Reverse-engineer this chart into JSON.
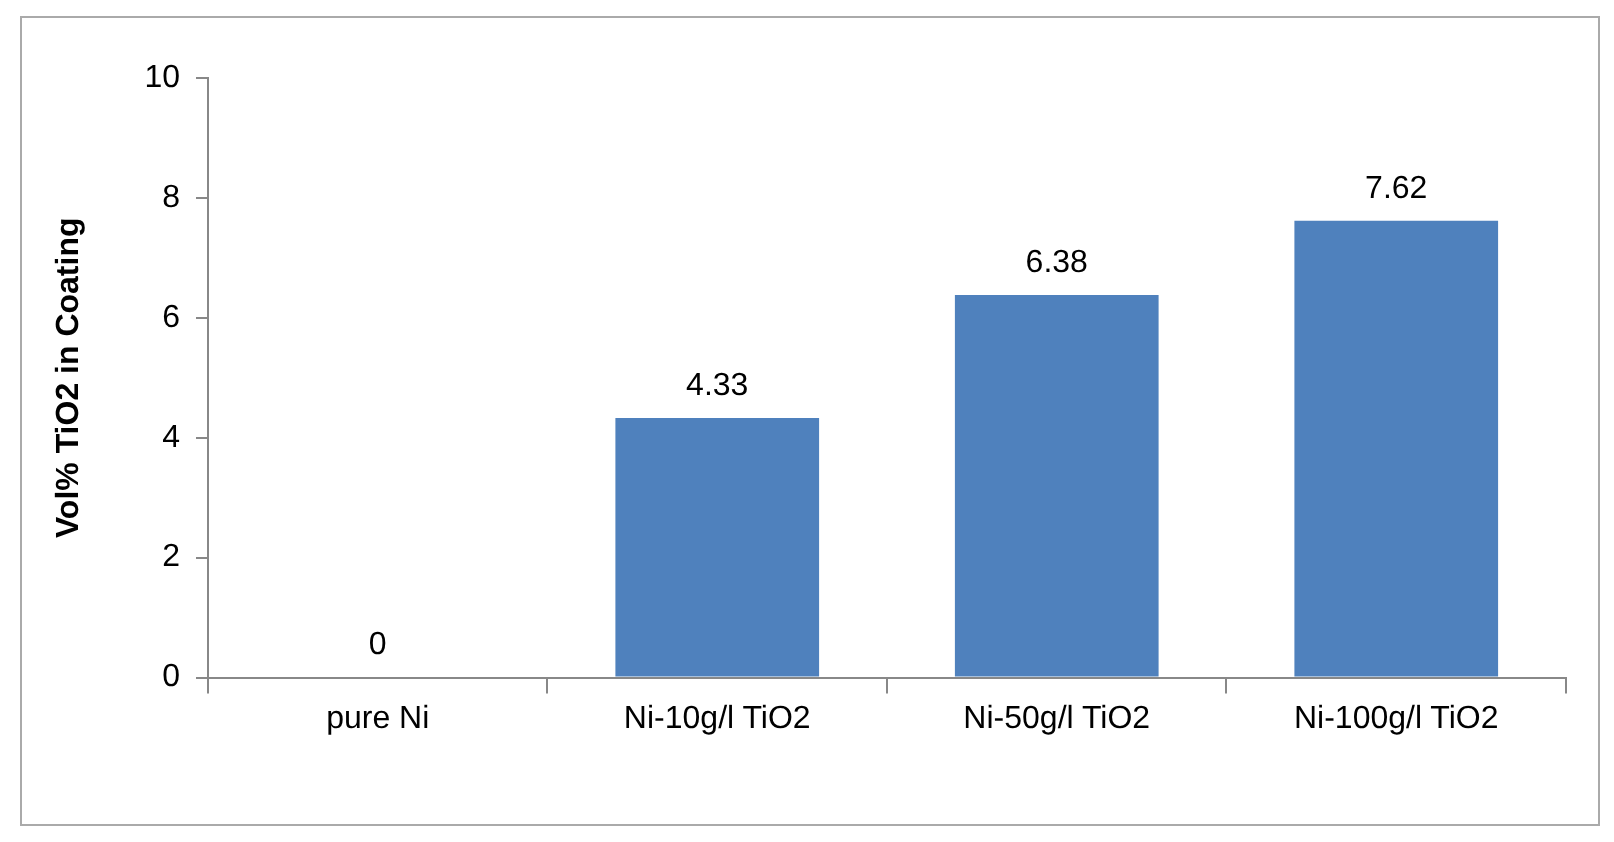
{
  "chart_data": {
    "type": "bar",
    "ylabel": "Vol% TiO2 in Coating",
    "categories": [
      "pure Ni",
      "Ni-10g/l TiO2",
      "Ni-50g/l TiO2",
      "Ni-100g/l TiO2"
    ],
    "values": [
      0,
      4.33,
      6.38,
      7.62
    ],
    "color": "#4f81bd",
    "ylim": [
      0,
      10
    ],
    "yticks": [
      0,
      2,
      4,
      6,
      8,
      10
    ],
    "grid": false,
    "legend": false,
    "data_labels": true
  }
}
